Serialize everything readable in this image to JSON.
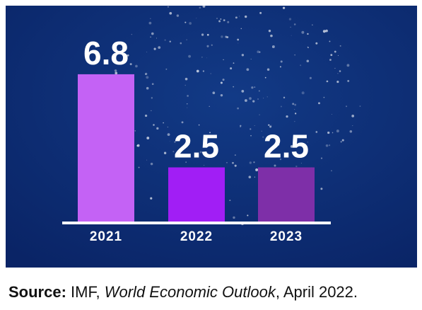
{
  "chart_data": {
    "type": "bar",
    "categories": [
      "2021",
      "2022",
      "2023"
    ],
    "values": [
      6.8,
      2.5,
      2.5
    ],
    "colors": [
      "#c462f5",
      "#a11ef5",
      "#7e2fa8"
    ],
    "source": {
      "label": "Source:",
      "publisher": "IMF,",
      "publication": "World Economic Outlook",
      "date": ", April 2022."
    }
  }
}
